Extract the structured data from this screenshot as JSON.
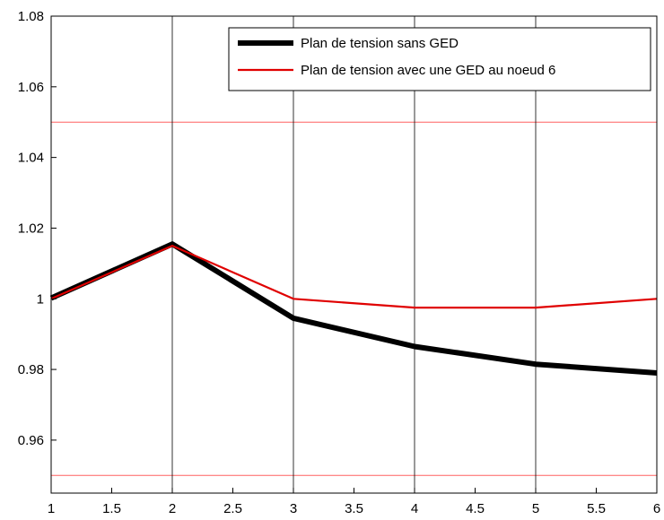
{
  "chart_data": {
    "type": "line",
    "title": "",
    "xlabel": "",
    "ylabel": "",
    "xlim": [
      1,
      6
    ],
    "ylim": [
      0.945,
      1.08
    ],
    "x_ticks": [
      "1",
      "1.5",
      "2",
      "2.5",
      "3",
      "3.5",
      "4",
      "4.5",
      "5",
      "5.5",
      "6"
    ],
    "y_ticks": [
      "0.96",
      "0.98",
      "1",
      "1.02",
      "1.04",
      "1.06",
      "1.08"
    ],
    "grid": "vertical lines at integer x",
    "legend_position": "top-right",
    "series": [
      {
        "name": "Plan de tension sans GED",
        "color": "#000000",
        "style": "thick",
        "x": [
          1,
          2,
          3,
          4,
          5,
          6
        ],
        "y": [
          1.0002,
          1.0155,
          0.9945,
          0.9865,
          0.9815,
          0.979
        ]
      },
      {
        "name": "Plan de tension avec une GED au noeud 6",
        "color": "#e00000",
        "style": "thin",
        "x": [
          1,
          2,
          3,
          4,
          5,
          6
        ],
        "y": [
          1.0,
          1.015,
          1.0,
          0.9975,
          0.9975,
          1.0
        ]
      }
    ],
    "reference_lines": [
      {
        "y": 1.05,
        "color": "#ff6060"
      },
      {
        "y": 0.95,
        "color": "#ff6060"
      }
    ]
  }
}
